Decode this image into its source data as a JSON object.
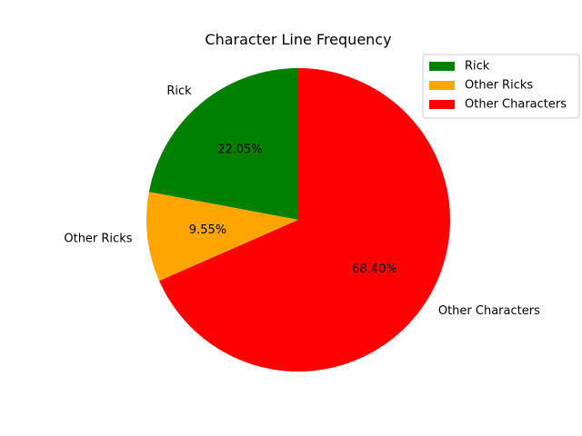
{
  "chart_data": {
    "type": "pie",
    "title": "Character Line Frequency",
    "categories": [
      "Rick",
      "Other Ricks",
      "Other Characters"
    ],
    "values": [
      22.05,
      9.55,
      68.4
    ],
    "percent_labels": [
      "22.05%",
      "9.55%",
      "68.40%"
    ],
    "colors": [
      "#008000",
      "#ffa500",
      "#ff0000"
    ],
    "start_angle_deg": 90,
    "direction": "counterclockwise",
    "legend_placement": "top-right"
  }
}
